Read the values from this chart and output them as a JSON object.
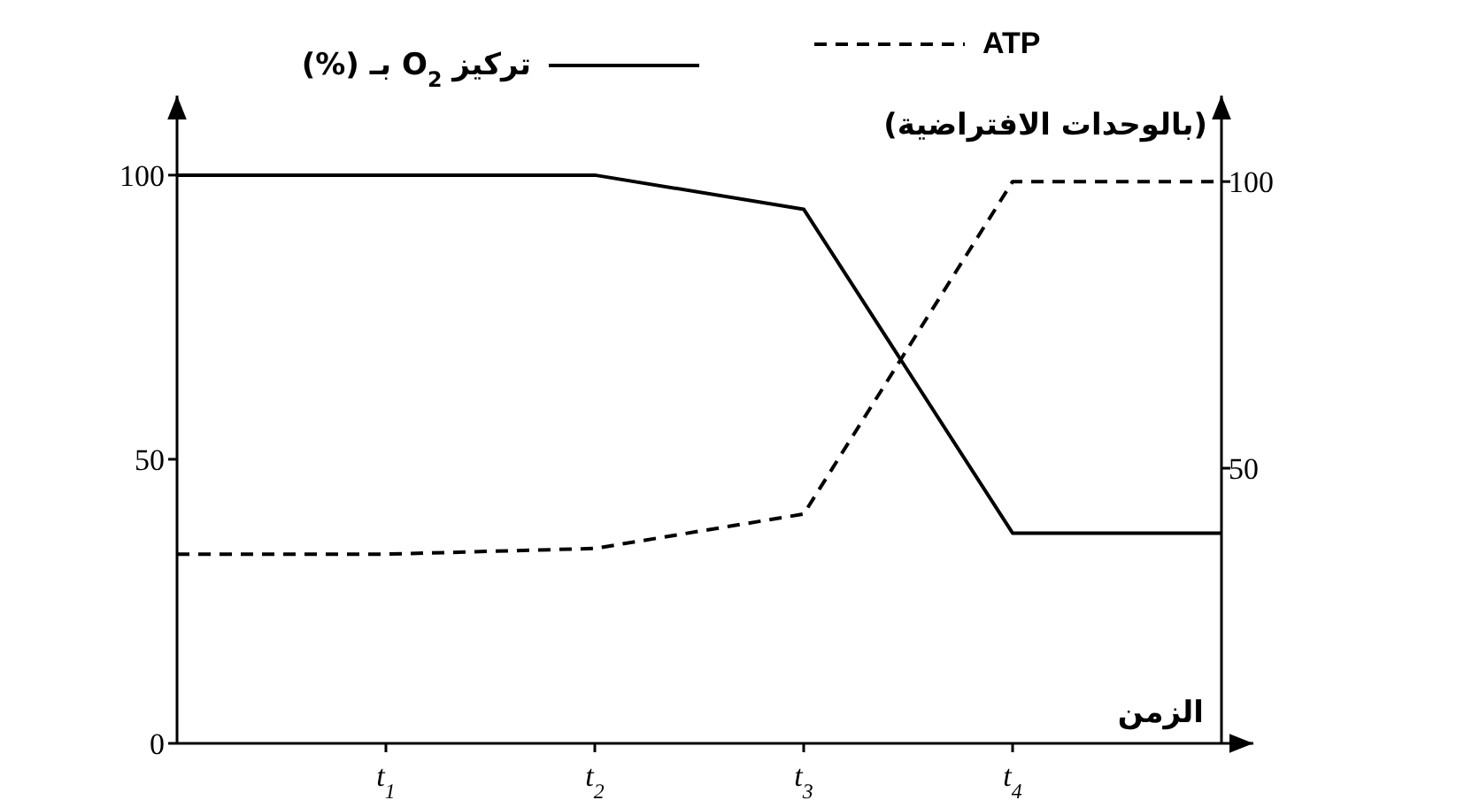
{
  "chart_data": {
    "type": "line",
    "xlabel": "الزمن",
    "y2label": "(بالوحدات الافتراضية)",
    "categories": [
      null,
      "t$_{1}$",
      "t$_{2}$",
      "t$_{3}$",
      "t$_{4}$",
      null
    ],
    "series": [
      {
        "name": "تركيز O$_{2}$ بـ (%)",
        "color": "#000000",
        "line_style": "solid",
        "values": [
          100,
          100,
          100,
          94,
          37,
          37
        ]
      },
      {
        "name": "ATP",
        "color": "#000000",
        "line_style": "dashed",
        "axis": "y2",
        "values": [
          35,
          35,
          36,
          42,
          100,
          100
        ]
      }
    ],
    "ylim": [
      0,
      114
    ],
    "yticks": [
      0,
      50,
      100
    ],
    "y2lim": [
      2,
      115
    ],
    "y2ticks": [
      50,
      100
    ],
    "legend": "top",
    "grid": false
  }
}
